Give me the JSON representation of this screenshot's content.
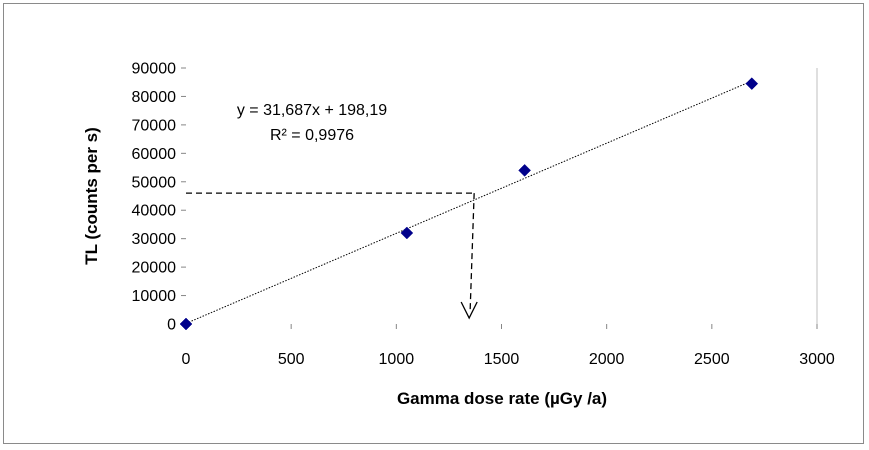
{
  "chart_data": {
    "type": "scatter",
    "xlabel": "Gamma dose rate (µGy /a)",
    "ylabel": "TL (counts per s)",
    "xlim": [
      0,
      3000
    ],
    "ylim": [
      0,
      90000
    ],
    "x_ticks": [
      "0",
      "500",
      "1000",
      "1500",
      "2000",
      "2500",
      "3000"
    ],
    "y_ticks": [
      "0",
      "10000",
      "20000",
      "30000",
      "40000",
      "50000",
      "60000",
      "70000",
      "80000",
      "90000"
    ],
    "x_tick_values": [
      0,
      500,
      1000,
      1500,
      2000,
      2500,
      3000
    ],
    "y_tick_values": [
      0,
      10000,
      20000,
      30000,
      40000,
      50000,
      60000,
      70000,
      80000,
      90000
    ],
    "series": [
      {
        "marker": "diamond",
        "color": "#00008B",
        "x": [
          0,
          1050,
          1610,
          2690
        ],
        "y": [
          0,
          32000,
          54000,
          84500
        ]
      }
    ],
    "trendline": {
      "slope": 31.687,
      "intercept": 198.19,
      "x_range": [
        0,
        2690
      ],
      "equation_label": "y = 31,687x + 198,19",
      "r2_label": "R² = 0,9976"
    },
    "annotation": {
      "y_value": 46000,
      "x_value": 1370,
      "style": "dashed-arrow"
    },
    "grid": false,
    "legend": "none"
  }
}
